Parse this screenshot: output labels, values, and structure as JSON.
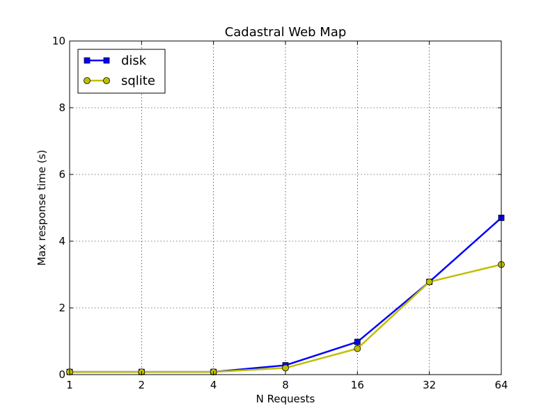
{
  "chart_data": {
    "type": "line",
    "title": "Cadastral Web Map",
    "xlabel": "N Requests",
    "ylabel": "Max response time (s)",
    "x": [
      1,
      2,
      4,
      8,
      16,
      32,
      64
    ],
    "x_tick_labels": [
      "1",
      "2",
      "4",
      "8",
      "16",
      "32",
      "64"
    ],
    "x_scale": "log2",
    "ylim": [
      0,
      10
    ],
    "y_ticks": [
      0,
      2,
      4,
      6,
      8,
      10
    ],
    "y_tick_labels": [
      "0",
      "2",
      "4",
      "6",
      "8",
      "10"
    ],
    "grid": true,
    "legend_position": "top-left",
    "series": [
      {
        "name": "disk",
        "values": [
          0.08,
          0.08,
          0.08,
          0.28,
          0.98,
          2.78,
          4.7
        ],
        "color": "#0000ff",
        "marker": "square"
      },
      {
        "name": "sqlite",
        "values": [
          0.08,
          0.08,
          0.08,
          0.2,
          0.78,
          2.78,
          3.3
        ],
        "color": "#bfbf00",
        "marker": "circle"
      }
    ]
  }
}
